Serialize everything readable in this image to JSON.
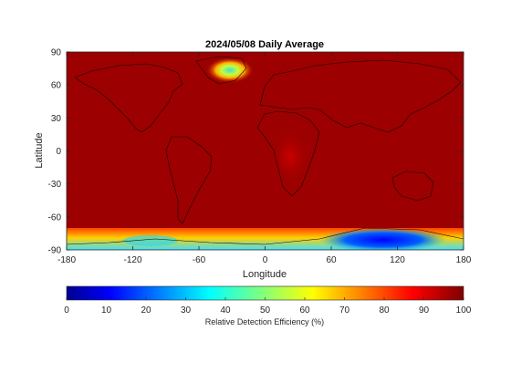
{
  "chart_data": {
    "type": "heatmap",
    "title": "2024/05/08 Daily Average",
    "xlabel": "Longitude",
    "ylabel": "Latitude",
    "xlim": [
      -180,
      180
    ],
    "ylim": [
      -90,
      90
    ],
    "xticks": [
      -180,
      -120,
      -60,
      0,
      60,
      120,
      180
    ],
    "yticks": [
      90,
      60,
      30,
      0,
      -30,
      -60,
      -90
    ],
    "colormap": "jet",
    "colorbar": {
      "label": "Relative Detection Efficiency (%)",
      "range": [
        0,
        100
      ],
      "ticks": [
        0,
        10,
        20,
        30,
        40,
        50,
        60,
        70,
        80,
        90,
        100
      ],
      "placement": "bottom"
    },
    "field_summary": {
      "background_value": 96,
      "regions": [
        {
          "name": "Greenland",
          "lon": -40,
          "lat": 73,
          "value": 40
        },
        {
          "name": "Central Africa",
          "lon": 25,
          "lat": -5,
          "value": 90
        },
        {
          "name": "Antarctica (East)",
          "lon": 120,
          "lat": -80,
          "value": 15
        },
        {
          "name": "Antarctica (West)",
          "lon": -100,
          "lat": -78,
          "value": 45
        }
      ]
    }
  }
}
